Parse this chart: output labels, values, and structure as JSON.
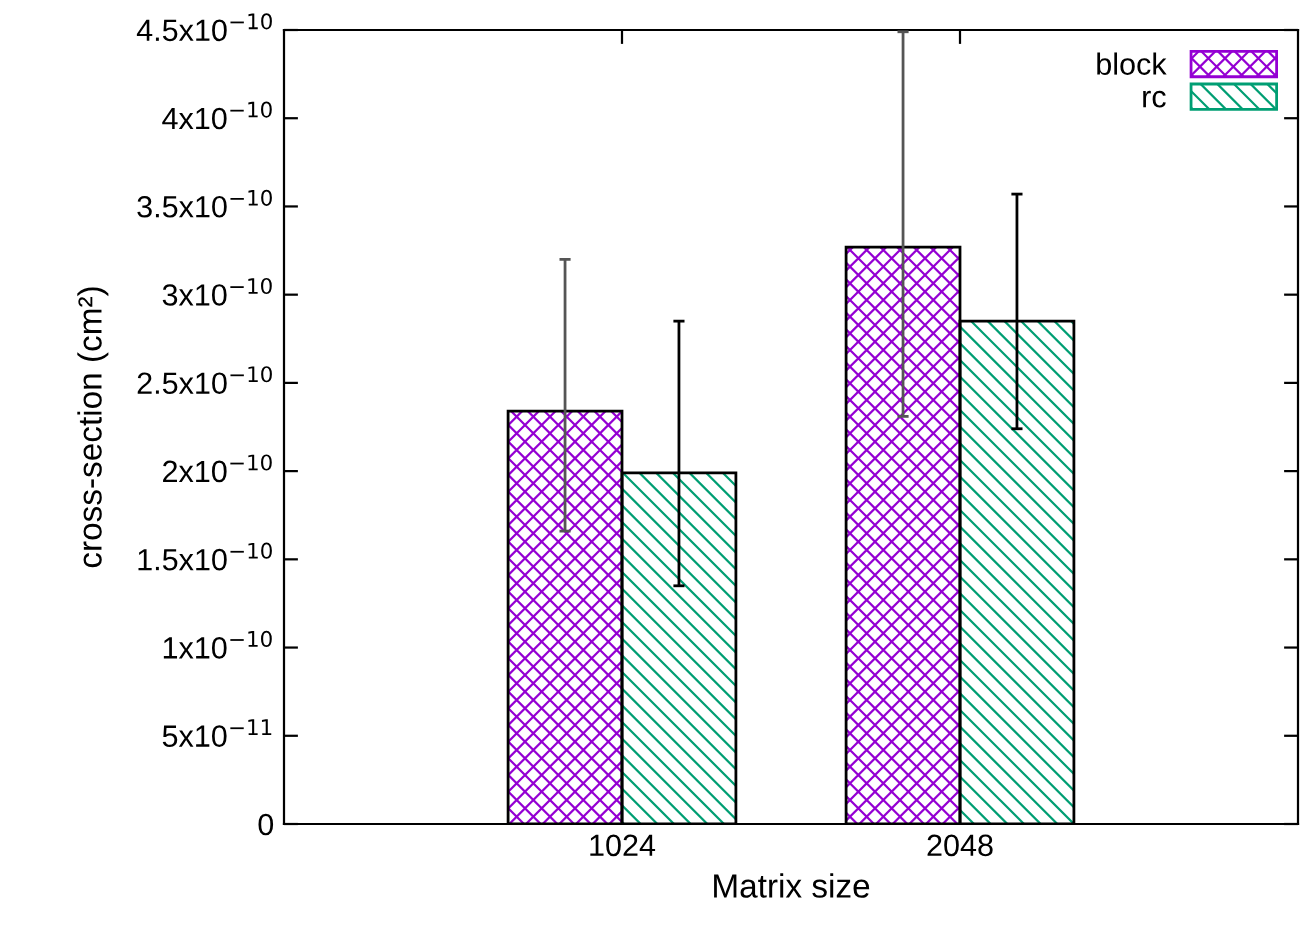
{
  "chart_data": {
    "type": "bar",
    "xlabel": "Matrix size",
    "ylabel": "cross-section (cm²)",
    "categories": [
      "1024",
      "2048"
    ],
    "series": [
      {
        "name": "block",
        "color": "#9400d3",
        "values": [
          2.34e-10,
          3.27e-10
        ],
        "errors": [
          [
            1.66e-10,
            3.2e-10
          ],
          [
            2.31e-10,
            4.49e-10
          ]
        ]
      },
      {
        "name": "rc",
        "color": "#009e73",
        "values": [
          1.99e-10,
          2.85e-10
        ],
        "errors": [
          [
            1.35e-10,
            2.85e-10
          ],
          [
            2.24e-10,
            3.57e-10
          ]
        ]
      }
    ],
    "ylim": [
      0,
      4.5e-10
    ],
    "yticks": [
      0,
      {
        "value": 5e-11,
        "label": "5x10$^{−11}$"
      },
      {
        "value": 1e-10,
        "label": "1x10$^{−10}$"
      },
      {
        "value": 1.5e-10,
        "label": "1.5x10$^{−10}$"
      },
      {
        "value": 2e-10,
        "label": "2x10$^{−10}$"
      },
      {
        "value": 2.5e-10,
        "label": "2.5x10$^{−10}$"
      },
      {
        "value": 3e-10,
        "label": "3x10$^{−10}$"
      },
      {
        "value": 3.5e-10,
        "label": "3.5x10$^{−10}$"
      },
      {
        "value": 4e-10,
        "label": "4x10$^{−10}$"
      },
      {
        "value": 4.5e-10,
        "label": "4.5x10$^{−10}$"
      }
    ],
    "legend": "top right",
    "grid": false
  }
}
